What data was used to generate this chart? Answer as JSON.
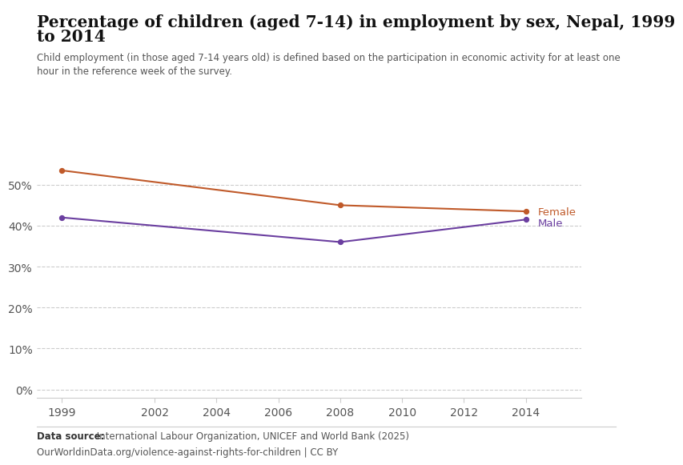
{
  "title_line1": "Percentage of children (aged 7-14) in employment by sex, Nepal, 1999",
  "title_line2": "to 2014",
  "subtitle": "Child employment (in those aged 7-14 years old) is defined based on the participation in economic activity for at least one\nhour in the reference week of the survey.",
  "female_years": [
    1999,
    2008,
    2014
  ],
  "female_values": [
    53.5,
    45.0,
    43.5
  ],
  "male_years": [
    1999,
    2008,
    2014
  ],
  "male_values": [
    42.0,
    36.0,
    41.5
  ],
  "female_color": "#C05A2A",
  "male_color": "#6B3FA0",
  "yticks": [
    0,
    10,
    20,
    30,
    40,
    50
  ],
  "ytick_labels": [
    "0%",
    "10%",
    "20%",
    "30%",
    "40%",
    "50%"
  ],
  "xticks": [
    1999,
    2002,
    2004,
    2006,
    2008,
    2010,
    2012,
    2014
  ],
  "ylim": [
    -2,
    59
  ],
  "xlim": [
    1998.2,
    2015.8
  ],
  "datasource_bold": "Data source:",
  "datasource_normal": " International Labour Organization, UNICEF and World Bank (2025)",
  "url": "OurWorldinData.org/violence-against-rights-for-children | CC BY",
  "background_color": "#ffffff",
  "logo_bg": "#1d3557",
  "logo_red": "#c0392b",
  "grid_color": "#cccccc",
  "axis_color": "#cccccc",
  "tick_label_color": "#555555"
}
